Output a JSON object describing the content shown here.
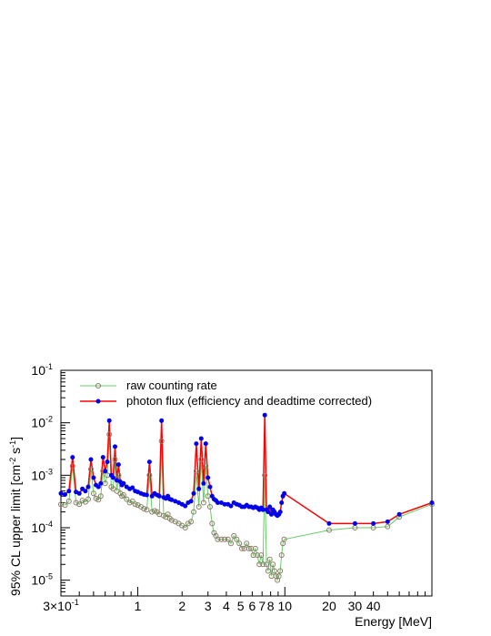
{
  "chart_data": {
    "type": "line",
    "xlabel": "Energy [MeV]",
    "ylabel_main": "95% CL upper limit [cm",
    "ylabel_sup1": "-2",
    "ylabel_mid": " s",
    "ylabel_sup2": "-1",
    "ylabel_end": "]",
    "xscale": "log",
    "yscale": "log",
    "xlim": [
      0.3,
      100
    ],
    "ylim": [
      5e-06,
      0.1
    ],
    "legend_position": "top-left",
    "x_tick_labels": [
      {
        "value": 0.3,
        "base": "3×10",
        "exp": "-1"
      },
      {
        "value": 1,
        "label": "1"
      },
      {
        "value": 2,
        "label": "2"
      },
      {
        "value": 3,
        "label": "3"
      },
      {
        "value": 4,
        "label": "4"
      },
      {
        "value": 5,
        "label": "5"
      },
      {
        "value": 6,
        "label": "6"
      },
      {
        "value": 7,
        "label": "7"
      },
      {
        "value": 8,
        "label": "8"
      },
      {
        "value": 10,
        "label": "10"
      },
      {
        "value": 20,
        "label": "20"
      },
      {
        "value": 30,
        "label": "30"
      },
      {
        "value": 40,
        "label": "40"
      }
    ],
    "y_tick_labels": [
      {
        "value": 1e-05,
        "base": "10",
        "exp": "-5"
      },
      {
        "value": 0.0001,
        "base": "10",
        "exp": "-4"
      },
      {
        "value": 0.001,
        "base": "10",
        "exp": "-3"
      },
      {
        "value": 0.01,
        "base": "10",
        "exp": "-2"
      },
      {
        "value": 0.1,
        "base": "10",
        "exp": "-1"
      }
    ],
    "series": [
      {
        "name": "raw counting rate",
        "line_color": "#66cc66",
        "marker_color": "#8a7a66",
        "marker": "open-circle",
        "x": [
          0.3,
          0.32,
          0.34,
          0.36,
          0.38,
          0.4,
          0.42,
          0.44,
          0.46,
          0.48,
          0.5,
          0.52,
          0.54,
          0.56,
          0.58,
          0.6,
          0.62,
          0.64,
          0.66,
          0.68,
          0.7,
          0.72,
          0.74,
          0.76,
          0.78,
          0.8,
          0.84,
          0.88,
          0.92,
          0.96,
          1.0,
          1.05,
          1.1,
          1.15,
          1.2,
          1.25,
          1.3,
          1.35,
          1.4,
          1.45,
          1.5,
          1.55,
          1.6,
          1.65,
          1.7,
          1.8,
          1.9,
          2.0,
          2.1,
          2.2,
          2.3,
          2.4,
          2.5,
          2.6,
          2.7,
          2.8,
          2.9,
          3.0,
          3.1,
          3.2,
          3.3,
          3.4,
          3.5,
          3.7,
          3.9,
          4.1,
          4.3,
          4.5,
          4.7,
          4.9,
          5.1,
          5.3,
          5.5,
          5.7,
          5.9,
          6.1,
          6.3,
          6.5,
          6.7,
          6.9,
          7.1,
          7.3,
          7.5,
          7.7,
          7.9,
          8.1,
          8.3,
          8.5,
          8.7,
          8.9,
          9.1,
          9.3,
          9.5,
          9.7,
          9.9,
          20,
          30,
          40,
          50,
          60,
          100
        ],
        "y": [
          0.00028,
          0.00027,
          0.00032,
          0.0015,
          0.0003,
          0.00028,
          0.00033,
          0.00031,
          0.00035,
          0.0013,
          0.00045,
          0.00036,
          0.00034,
          0.0004,
          0.0012,
          0.0007,
          0.001,
          0.006,
          0.0006,
          0.00055,
          0.002,
          0.0005,
          0.001,
          0.00045,
          0.0004,
          0.00042,
          0.00035,
          0.0003,
          0.00032,
          0.00028,
          0.00027,
          0.00025,
          0.00023,
          0.00022,
          0.001,
          0.0002,
          0.00021,
          0.0002,
          0.00018,
          0.0045,
          0.00017,
          0.00016,
          0.00018,
          0.00015,
          0.00014,
          0.00013,
          0.00012,
          0.00011,
          0.0001,
          0.00012,
          0.00013,
          0.0002,
          0.0012,
          0.00025,
          0.002,
          0.0003,
          0.0015,
          0.0004,
          0.00025,
          0.00012,
          8e-05,
          7e-05,
          6e-05,
          6e-05,
          6e-05,
          6e-05,
          5e-05,
          7e-05,
          6e-05,
          5e-05,
          4e-05,
          4e-05,
          5e-05,
          4e-05,
          4e-05,
          3e-05,
          4e-05,
          3e-05,
          2e-05,
          3e-05,
          2e-05,
          0.001,
          2e-05,
          1.5e-05,
          2.5e-05,
          1.2e-05,
          2e-05,
          1.5e-05,
          1.2e-05,
          1e-05,
          1.2e-05,
          1.5e-05,
          3e-05,
          5e-05,
          6e-05,
          9e-05,
          0.0001,
          0.0001,
          0.000105,
          0.00016,
          0.00028
        ]
      },
      {
        "name": "photon flux (efficiency and deadtime corrected)",
        "line_color": "#ff0000",
        "marker_color": "#0000ee",
        "marker": "filled-circle",
        "x": [
          0.3,
          0.32,
          0.34,
          0.36,
          0.38,
          0.4,
          0.42,
          0.44,
          0.46,
          0.48,
          0.5,
          0.52,
          0.54,
          0.56,
          0.58,
          0.6,
          0.62,
          0.64,
          0.66,
          0.68,
          0.7,
          0.72,
          0.74,
          0.76,
          0.78,
          0.8,
          0.84,
          0.88,
          0.92,
          0.96,
          1.0,
          1.05,
          1.1,
          1.15,
          1.2,
          1.25,
          1.3,
          1.35,
          1.4,
          1.45,
          1.5,
          1.55,
          1.6,
          1.65,
          1.7,
          1.8,
          1.9,
          2.0,
          2.1,
          2.2,
          2.3,
          2.4,
          2.5,
          2.6,
          2.7,
          2.8,
          2.9,
          3.0,
          3.1,
          3.2,
          3.3,
          3.4,
          3.5,
          3.7,
          3.9,
          4.1,
          4.3,
          4.5,
          4.7,
          4.9,
          5.1,
          5.3,
          5.5,
          5.7,
          5.9,
          6.1,
          6.3,
          6.5,
          6.7,
          6.9,
          7.1,
          7.3,
          7.5,
          7.7,
          7.9,
          8.1,
          8.3,
          8.5,
          8.7,
          8.9,
          9.1,
          9.3,
          9.5,
          9.7,
          9.9,
          20,
          30,
          40,
          50,
          60,
          100
        ],
        "y": [
          0.00045,
          0.00043,
          0.0005,
          0.0022,
          0.00048,
          0.00045,
          0.00055,
          0.0005,
          0.0006,
          0.002,
          0.0009,
          0.00065,
          0.0006,
          0.0007,
          0.0022,
          0.0012,
          0.0018,
          0.011,
          0.001,
          0.0009,
          0.0035,
          0.0008,
          0.0016,
          0.00075,
          0.00065,
          0.0007,
          0.0006,
          0.00055,
          0.00058,
          0.0005,
          0.00048,
          0.00045,
          0.00043,
          0.00042,
          0.0018,
          0.0004,
          0.00045,
          0.00042,
          0.0004,
          0.011,
          0.00038,
          0.00036,
          0.0004,
          0.00035,
          0.00034,
          0.00032,
          0.0003,
          0.00028,
          0.00026,
          0.0003,
          0.00032,
          0.00045,
          0.004,
          0.00055,
          0.005,
          0.0007,
          0.004,
          0.0009,
          0.0006,
          0.0004,
          0.00035,
          0.00033,
          0.0003,
          0.0003,
          0.00028,
          0.00028,
          0.00026,
          0.0003,
          0.00028,
          0.00027,
          0.00025,
          0.00025,
          0.00027,
          0.00025,
          0.00025,
          0.00024,
          0.00025,
          0.00024,
          0.00022,
          0.00024,
          0.00022,
          0.014,
          0.00022,
          0.0002,
          0.00025,
          0.00018,
          0.00022,
          0.0002,
          0.00018,
          0.00017,
          0.00018,
          0.0002,
          0.0003,
          0.0004,
          0.00045,
          0.00012,
          0.00012,
          0.00012,
          0.00013,
          0.00018,
          0.0003
        ]
      }
    ]
  }
}
